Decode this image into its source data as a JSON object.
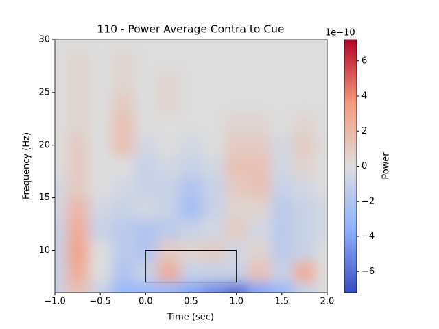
{
  "chart_data": {
    "type": "heatmap",
    "title": "110 - Power Average Contra to Cue",
    "x_label": "Time (sec)",
    "y_label": "Frequency (Hz)",
    "colorbar_label": "Power",
    "colorbar_offset": "1e−10",
    "colormap": "coolwarm",
    "x": [
      -1,
      -0.75,
      -0.5,
      -0.25,
      0,
      0.25,
      0.5,
      0.75,
      1,
      1.25,
      1.5,
      1.75,
      2
    ],
    "y": [
      6,
      8,
      10,
      12,
      14,
      16,
      18,
      20,
      22,
      24,
      26,
      28,
      30
    ],
    "z": [
      [
        -1,
        1.5,
        -1,
        -3,
        -3,
        -3,
        -4,
        -5,
        -6,
        -4,
        -3,
        -1,
        0
      ],
      [
        -1,
        2.5,
        0,
        -2,
        -1,
        2.5,
        -1,
        -1,
        -1,
        1.5,
        -1,
        2.5,
        0
      ],
      [
        -1,
        3,
        0,
        -1.5,
        -2,
        1,
        0.5,
        1,
        -0.5,
        0.5,
        -1.5,
        -1,
        0
      ],
      [
        -1,
        2.5,
        -1,
        -1.5,
        -2,
        -1.5,
        -1,
        -0.5,
        1,
        -0.5,
        -1.5,
        -1,
        -0.5
      ],
      [
        -0.5,
        2,
        -0.5,
        -1,
        -0.5,
        -1,
        -2.5,
        -1,
        0.5,
        0.5,
        -1.5,
        -1,
        -0.5
      ],
      [
        -0.5,
        1,
        0,
        -0.5,
        -1,
        -1,
        -2,
        -1,
        1,
        1.5,
        -1,
        -0.5,
        0
      ],
      [
        0,
        1,
        0,
        0,
        -1,
        -0.5,
        -1,
        -0.5,
        1.5,
        1.5,
        -0.5,
        0.5,
        0
      ],
      [
        0,
        1,
        0,
        1.5,
        -0.5,
        0,
        -0.5,
        0,
        1,
        1,
        -0.5,
        1,
        0
      ],
      [
        0,
        0.5,
        0,
        1.5,
        0,
        0,
        0,
        0,
        0.5,
        0.5,
        0,
        0.5,
        0
      ],
      [
        0,
        0.5,
        0,
        1,
        0,
        0.5,
        0,
        0,
        0,
        0,
        0,
        0,
        0
      ],
      [
        0,
        0.5,
        0,
        0.5,
        0,
        0.5,
        0,
        0,
        0,
        0,
        0,
        0,
        0
      ],
      [
        0,
        0.5,
        0,
        0.5,
        0,
        0,
        0,
        0,
        0,
        0,
        0,
        0,
        0
      ],
      [
        0,
        0,
        0,
        0,
        0,
        0,
        0,
        0,
        0,
        0,
        0,
        0,
        0
      ]
    ],
    "box": {
      "x": [
        0,
        1
      ],
      "y": [
        7,
        10
      ]
    },
    "xlim": [
      -1,
      2
    ],
    "xticks": [
      {
        "value": -1,
        "label": "−1.0"
      },
      {
        "value": -0.5,
        "label": "−0.5"
      },
      {
        "value": 0,
        "label": "0.0"
      },
      {
        "value": 0.5,
        "label": "0.5"
      },
      {
        "value": 1,
        "label": "1.0"
      },
      {
        "value": 1.5,
        "label": "1.5"
      },
      {
        "value": 2,
        "label": "2.0"
      }
    ],
    "ylim": [
      6,
      30
    ],
    "yticks": [
      10,
      15,
      20,
      25,
      30
    ],
    "clim": [
      -7.2,
      7.2
    ],
    "cticks": [
      {
        "value": -6,
        "label": "−6"
      },
      {
        "value": -4,
        "label": "−4"
      },
      {
        "value": -2,
        "label": "−2"
      },
      0,
      2,
      4,
      6
    ]
  }
}
